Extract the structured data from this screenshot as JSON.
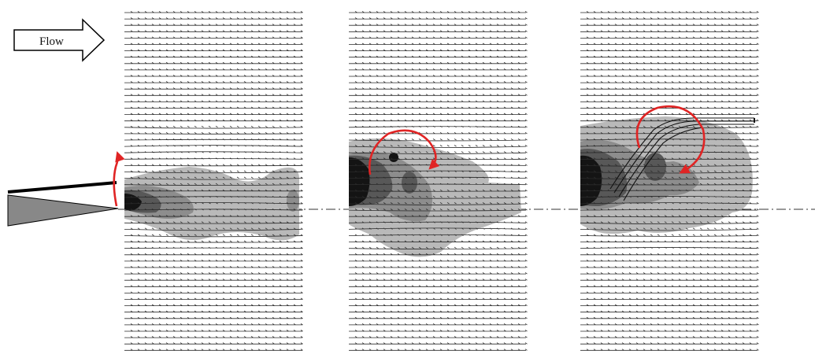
{
  "figure": {
    "flow_label": "Flow",
    "colors": {
      "vector": "#2a2a2a",
      "vortex_arrow": "#e02424",
      "shade_light": "#b9b9b9",
      "shade_mid": "#8d8d8d",
      "shade_dark": "#585858",
      "shade_core": "#141414",
      "plate": "#888888",
      "outline": "#000000"
    },
    "panels": [
      {
        "id": "panel-1",
        "vortex_arrow": "emerging"
      },
      {
        "id": "panel-2",
        "vortex_arrow": "clockwise-rollup"
      },
      {
        "id": "panel-3",
        "vortex_arrow": "clockwise-rollup"
      }
    ]
  }
}
